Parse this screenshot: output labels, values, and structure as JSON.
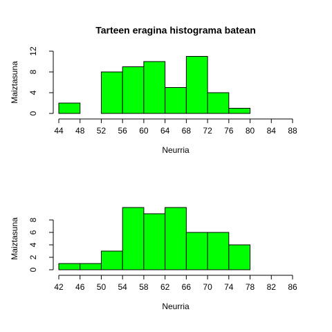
{
  "chart_data": [
    {
      "type": "histogram",
      "title": "Tarteen eragina histograma batean",
      "xlabel": "Neurria",
      "ylabel": "Maiztasuna",
      "bins": [
        44,
        48,
        52,
        56,
        60,
        64,
        68,
        72,
        76,
        80,
        84,
        88
      ],
      "counts": [
        2,
        0,
        8,
        9,
        10,
        5,
        11,
        4,
        1,
        0,
        0
      ],
      "color": "#00ff00",
      "xlim": [
        44,
        88
      ],
      "xticks": [
        44,
        48,
        52,
        56,
        60,
        64,
        68,
        72,
        76,
        80,
        84,
        88
      ],
      "ylim": [
        0,
        12
      ],
      "yticks": [
        0,
        4,
        8,
        12
      ]
    },
    {
      "type": "histogram",
      "xlabel": "Neurria",
      "ylabel": "Maiztasuna",
      "bins": [
        42,
        46,
        50,
        54,
        58,
        62,
        66,
        70,
        74,
        78,
        82,
        86
      ],
      "counts": [
        1,
        1,
        3,
        10,
        9,
        10,
        6,
        6,
        4,
        0,
        0
      ],
      "color": "#00ff00",
      "xlim": [
        42,
        86
      ],
      "xticks": [
        42,
        46,
        50,
        54,
        58,
        62,
        66,
        70,
        74,
        78,
        82,
        86
      ],
      "ylim": [
        0,
        10
      ],
      "yticks": [
        0,
        2,
        4,
        6,
        8
      ]
    }
  ]
}
